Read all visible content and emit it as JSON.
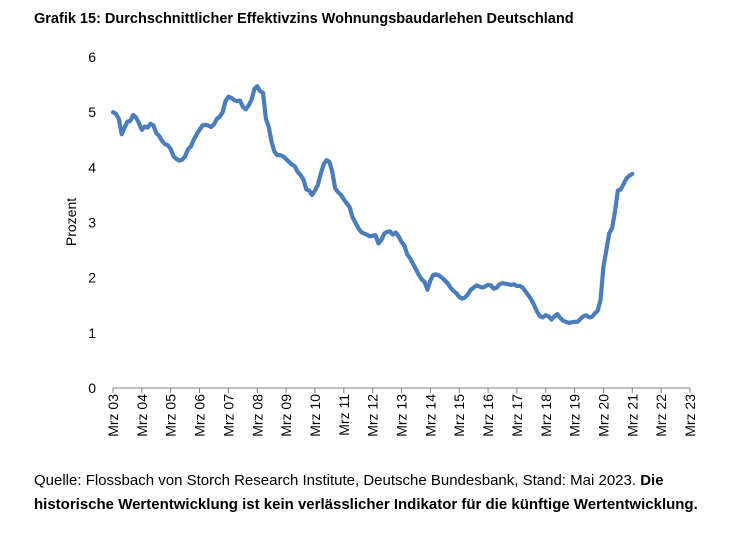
{
  "chart_data": {
    "type": "line",
    "title": "Grafik 15: Durchschnittlicher Effektivzins Wohnungsbaudarlehen Deutschland",
    "ylabel": "Prozent",
    "xlabel": "",
    "ylim": [
      0,
      6
    ],
    "yticks": [
      "0",
      "1",
      "2",
      "3",
      "4",
      "5",
      "6"
    ],
    "xticks": [
      "Mrz 03",
      "Mrz 04",
      "Mrz 05",
      "Mrz 06",
      "Mrz 07",
      "Mrz 08",
      "Mrz 09",
      "Mrz 10",
      "Mrz 11",
      "Mrz 12",
      "Mrz 13",
      "Mrz 14",
      "Mrz 15",
      "Mrz 16",
      "Mrz 17",
      "Mrz 18",
      "Mrz 19",
      "Mrz 20",
      "Mrz 21",
      "Mrz 22",
      "Mrz 23"
    ],
    "grid": false,
    "legend": "none",
    "series_color": "#4a7ebb",
    "x_unit": "years since Mrz 03",
    "series": [
      {
        "name": "",
        "points": [
          [
            0.0,
            5.0
          ],
          [
            0.1,
            4.97
          ],
          [
            0.2,
            4.88
          ],
          [
            0.3,
            4.6
          ],
          [
            0.4,
            4.72
          ],
          [
            0.5,
            4.83
          ],
          [
            0.6,
            4.84
          ],
          [
            0.7,
            4.95
          ],
          [
            0.8,
            4.9
          ],
          [
            0.9,
            4.8
          ],
          [
            1.0,
            4.68
          ],
          [
            1.1,
            4.74
          ],
          [
            1.2,
            4.72
          ],
          [
            1.3,
            4.79
          ],
          [
            1.4,
            4.76
          ],
          [
            1.5,
            4.62
          ],
          [
            1.6,
            4.57
          ],
          [
            1.7,
            4.48
          ],
          [
            1.8,
            4.42
          ],
          [
            1.9,
            4.4
          ],
          [
            2.0,
            4.33
          ],
          [
            2.1,
            4.2
          ],
          [
            2.2,
            4.15
          ],
          [
            2.3,
            4.12
          ],
          [
            2.4,
            4.14
          ],
          [
            2.5,
            4.2
          ],
          [
            2.6,
            4.33
          ],
          [
            2.7,
            4.38
          ],
          [
            2.8,
            4.5
          ],
          [
            2.9,
            4.6
          ],
          [
            3.0,
            4.68
          ],
          [
            3.1,
            4.76
          ],
          [
            3.2,
            4.77
          ],
          [
            3.3,
            4.76
          ],
          [
            3.4,
            4.73
          ],
          [
            3.5,
            4.78
          ],
          [
            3.6,
            4.88
          ],
          [
            3.7,
            4.92
          ],
          [
            3.8,
            5.0
          ],
          [
            3.9,
            5.2
          ],
          [
            4.0,
            5.28
          ],
          [
            4.1,
            5.26
          ],
          [
            4.2,
            5.22
          ],
          [
            4.3,
            5.2
          ],
          [
            4.4,
            5.21
          ],
          [
            4.5,
            5.1
          ],
          [
            4.6,
            5.05
          ],
          [
            4.7,
            5.12
          ],
          [
            4.8,
            5.22
          ],
          [
            4.9,
            5.42
          ],
          [
            5.0,
            5.47
          ],
          [
            5.1,
            5.38
          ],
          [
            5.2,
            5.35
          ],
          [
            5.3,
            4.88
          ],
          [
            5.4,
            4.73
          ],
          [
            5.5,
            4.45
          ],
          [
            5.6,
            4.28
          ],
          [
            5.7,
            4.22
          ],
          [
            5.8,
            4.22
          ],
          [
            5.9,
            4.2
          ],
          [
            6.0,
            4.15
          ],
          [
            6.1,
            4.1
          ],
          [
            6.2,
            4.05
          ],
          [
            6.3,
            4.02
          ],
          [
            6.4,
            3.92
          ],
          [
            6.5,
            3.86
          ],
          [
            6.6,
            3.78
          ],
          [
            6.7,
            3.6
          ],
          [
            6.8,
            3.58
          ],
          [
            6.9,
            3.5
          ],
          [
            7.0,
            3.58
          ],
          [
            7.1,
            3.68
          ],
          [
            7.2,
            3.88
          ],
          [
            7.3,
            4.05
          ],
          [
            7.4,
            4.13
          ],
          [
            7.5,
            4.1
          ],
          [
            7.6,
            3.92
          ],
          [
            7.7,
            3.62
          ],
          [
            7.8,
            3.55
          ],
          [
            7.9,
            3.5
          ],
          [
            8.0,
            3.42
          ],
          [
            8.1,
            3.35
          ],
          [
            8.2,
            3.28
          ],
          [
            8.3,
            3.1
          ],
          [
            8.4,
            3.0
          ],
          [
            8.5,
            2.9
          ],
          [
            8.6,
            2.83
          ],
          [
            8.7,
            2.8
          ],
          [
            8.8,
            2.78
          ],
          [
            8.9,
            2.75
          ],
          [
            9.0,
            2.76
          ],
          [
            9.1,
            2.77
          ],
          [
            9.2,
            2.62
          ],
          [
            9.3,
            2.68
          ],
          [
            9.4,
            2.8
          ],
          [
            9.5,
            2.83
          ],
          [
            9.6,
            2.84
          ],
          [
            9.7,
            2.78
          ],
          [
            9.8,
            2.82
          ],
          [
            9.9,
            2.75
          ],
          [
            10.0,
            2.65
          ],
          [
            10.1,
            2.58
          ],
          [
            10.2,
            2.42
          ],
          [
            10.3,
            2.35
          ],
          [
            10.4,
            2.25
          ],
          [
            10.5,
            2.15
          ],
          [
            10.6,
            2.05
          ],
          [
            10.7,
            1.97
          ],
          [
            10.8,
            1.92
          ],
          [
            10.9,
            1.78
          ],
          [
            11.0,
            1.95
          ],
          [
            11.1,
            2.05
          ],
          [
            11.2,
            2.06
          ],
          [
            11.3,
            2.04
          ],
          [
            11.4,
            2.0
          ],
          [
            11.5,
            1.95
          ],
          [
            11.6,
            1.9
          ],
          [
            11.7,
            1.82
          ],
          [
            11.8,
            1.76
          ],
          [
            11.9,
            1.72
          ],
          [
            12.0,
            1.65
          ],
          [
            12.1,
            1.62
          ],
          [
            12.2,
            1.64
          ],
          [
            12.3,
            1.7
          ],
          [
            12.4,
            1.78
          ],
          [
            12.5,
            1.82
          ],
          [
            12.6,
            1.86
          ],
          [
            12.7,
            1.84
          ],
          [
            12.8,
            1.82
          ],
          [
            12.9,
            1.84
          ],
          [
            13.0,
            1.87
          ],
          [
            13.1,
            1.86
          ],
          [
            13.2,
            1.8
          ],
          [
            13.3,
            1.82
          ],
          [
            13.4,
            1.88
          ],
          [
            13.5,
            1.9
          ],
          [
            13.6,
            1.89
          ],
          [
            13.7,
            1.88
          ],
          [
            13.8,
            1.87
          ],
          [
            13.9,
            1.88
          ],
          [
            14.0,
            1.85
          ],
          [
            14.1,
            1.85
          ],
          [
            14.2,
            1.82
          ],
          [
            14.3,
            1.75
          ],
          [
            14.4,
            1.68
          ],
          [
            14.5,
            1.6
          ],
          [
            14.6,
            1.5
          ],
          [
            14.7,
            1.38
          ],
          [
            14.8,
            1.3
          ],
          [
            14.9,
            1.28
          ],
          [
            15.0,
            1.32
          ],
          [
            15.1,
            1.3
          ],
          [
            15.2,
            1.24
          ],
          [
            15.3,
            1.3
          ],
          [
            15.4,
            1.34
          ],
          [
            15.5,
            1.27
          ],
          [
            15.6,
            1.22
          ],
          [
            15.7,
            1.2
          ],
          [
            15.8,
            1.18
          ],
          [
            15.9,
            1.19
          ],
          [
            16.0,
            1.2
          ],
          [
            16.1,
            1.2
          ],
          [
            16.2,
            1.25
          ],
          [
            16.3,
            1.3
          ],
          [
            16.4,
            1.32
          ],
          [
            16.5,
            1.28
          ],
          [
            16.6,
            1.29
          ],
          [
            16.7,
            1.35
          ],
          [
            16.8,
            1.4
          ],
          [
            16.9,
            1.6
          ],
          [
            17.0,
            2.2
          ],
          [
            17.1,
            2.5
          ],
          [
            17.2,
            2.8
          ],
          [
            17.3,
            2.9
          ],
          [
            17.4,
            3.2
          ],
          [
            17.5,
            3.58
          ],
          [
            17.6,
            3.6
          ],
          [
            17.7,
            3.7
          ],
          [
            17.8,
            3.8
          ],
          [
            17.9,
            3.85
          ],
          [
            18.0,
            3.88
          ]
        ]
      }
    ]
  },
  "footer": {
    "source": "Quelle: Flossbach von Storch Research Institute, Deutsche Bundesbank, Stand: Mai 2023. ",
    "disclaimer": "Die historische Wertentwicklung ist kein verlässlicher Indikator für die künftige Wertentwick­lung."
  }
}
